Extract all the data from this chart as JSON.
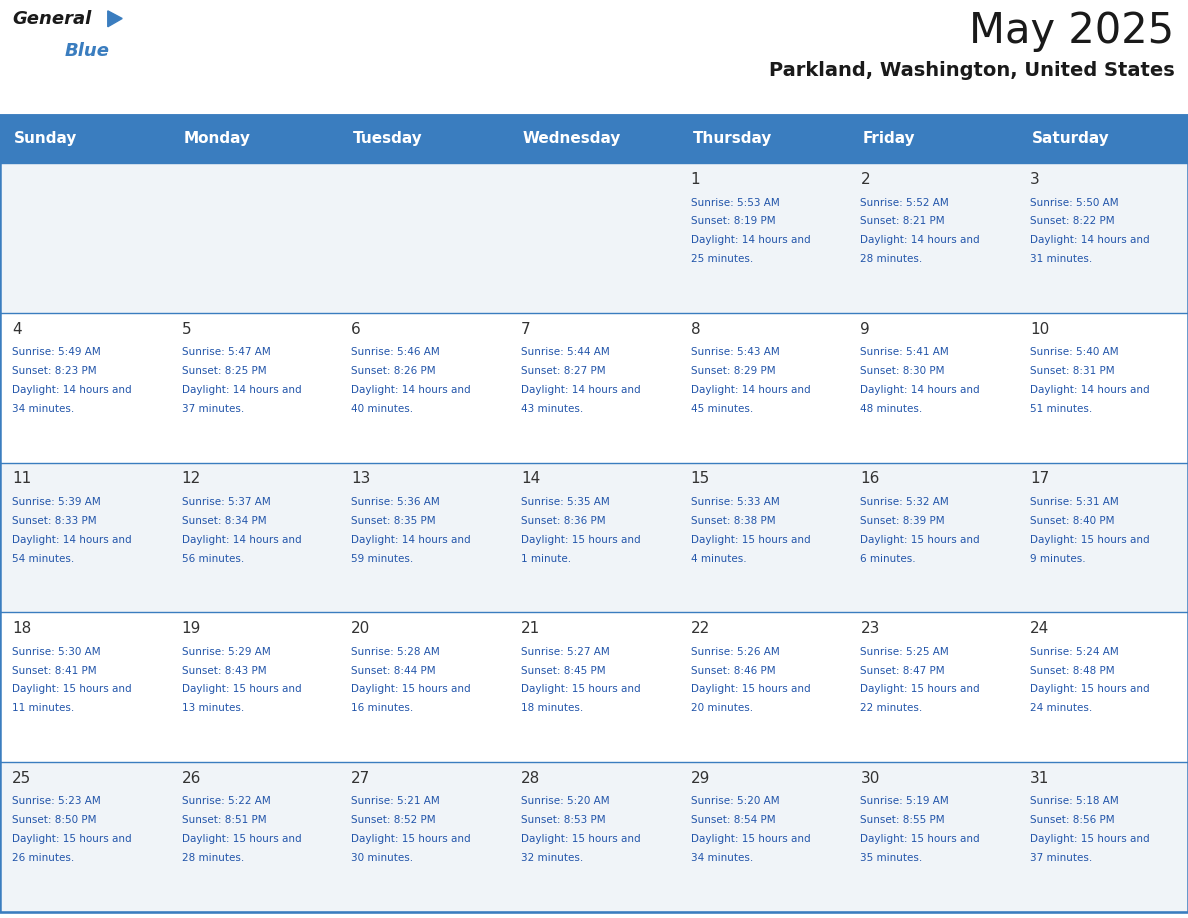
{
  "title": "May 2025",
  "subtitle": "Parkland, Washington, United States",
  "header_color": "#3a7dbf",
  "header_text_color": "#ffffff",
  "day_names": [
    "Sunday",
    "Monday",
    "Tuesday",
    "Wednesday",
    "Thursday",
    "Friday",
    "Saturday"
  ],
  "alt_row_color": "#f0f4f8",
  "white_color": "#ffffff",
  "border_color": "#3a7dbf",
  "day_number_color": "#333333",
  "cell_text_color": "#2255aa",
  "num_rows": 5,
  "days": [
    {
      "day": 1,
      "col": 4,
      "row": 0,
      "sunrise": "5:53 AM",
      "sunset": "8:19 PM",
      "daylight": "14 hours and 25 minutes"
    },
    {
      "day": 2,
      "col": 5,
      "row": 0,
      "sunrise": "5:52 AM",
      "sunset": "8:21 PM",
      "daylight": "14 hours and 28 minutes"
    },
    {
      "day": 3,
      "col": 6,
      "row": 0,
      "sunrise": "5:50 AM",
      "sunset": "8:22 PM",
      "daylight": "14 hours and 31 minutes"
    },
    {
      "day": 4,
      "col": 0,
      "row": 1,
      "sunrise": "5:49 AM",
      "sunset": "8:23 PM",
      "daylight": "14 hours and 34 minutes"
    },
    {
      "day": 5,
      "col": 1,
      "row": 1,
      "sunrise": "5:47 AM",
      "sunset": "8:25 PM",
      "daylight": "14 hours and 37 minutes"
    },
    {
      "day": 6,
      "col": 2,
      "row": 1,
      "sunrise": "5:46 AM",
      "sunset": "8:26 PM",
      "daylight": "14 hours and 40 minutes"
    },
    {
      "day": 7,
      "col": 3,
      "row": 1,
      "sunrise": "5:44 AM",
      "sunset": "8:27 PM",
      "daylight": "14 hours and 43 minutes"
    },
    {
      "day": 8,
      "col": 4,
      "row": 1,
      "sunrise": "5:43 AM",
      "sunset": "8:29 PM",
      "daylight": "14 hours and 45 minutes"
    },
    {
      "day": 9,
      "col": 5,
      "row": 1,
      "sunrise": "5:41 AM",
      "sunset": "8:30 PM",
      "daylight": "14 hours and 48 minutes"
    },
    {
      "day": 10,
      "col": 6,
      "row": 1,
      "sunrise": "5:40 AM",
      "sunset": "8:31 PM",
      "daylight": "14 hours and 51 minutes"
    },
    {
      "day": 11,
      "col": 0,
      "row": 2,
      "sunrise": "5:39 AM",
      "sunset": "8:33 PM",
      "daylight": "14 hours and 54 minutes"
    },
    {
      "day": 12,
      "col": 1,
      "row": 2,
      "sunrise": "5:37 AM",
      "sunset": "8:34 PM",
      "daylight": "14 hours and 56 minutes"
    },
    {
      "day": 13,
      "col": 2,
      "row": 2,
      "sunrise": "5:36 AM",
      "sunset": "8:35 PM",
      "daylight": "14 hours and 59 minutes"
    },
    {
      "day": 14,
      "col": 3,
      "row": 2,
      "sunrise": "5:35 AM",
      "sunset": "8:36 PM",
      "daylight": "15 hours and 1 minute"
    },
    {
      "day": 15,
      "col": 4,
      "row": 2,
      "sunrise": "5:33 AM",
      "sunset": "8:38 PM",
      "daylight": "15 hours and 4 minutes"
    },
    {
      "day": 16,
      "col": 5,
      "row": 2,
      "sunrise": "5:32 AM",
      "sunset": "8:39 PM",
      "daylight": "15 hours and 6 minutes"
    },
    {
      "day": 17,
      "col": 6,
      "row": 2,
      "sunrise": "5:31 AM",
      "sunset": "8:40 PM",
      "daylight": "15 hours and 9 minutes"
    },
    {
      "day": 18,
      "col": 0,
      "row": 3,
      "sunrise": "5:30 AM",
      "sunset": "8:41 PM",
      "daylight": "15 hours and 11 minutes"
    },
    {
      "day": 19,
      "col": 1,
      "row": 3,
      "sunrise": "5:29 AM",
      "sunset": "8:43 PM",
      "daylight": "15 hours and 13 minutes"
    },
    {
      "day": 20,
      "col": 2,
      "row": 3,
      "sunrise": "5:28 AM",
      "sunset": "8:44 PM",
      "daylight": "15 hours and 16 minutes"
    },
    {
      "day": 21,
      "col": 3,
      "row": 3,
      "sunrise": "5:27 AM",
      "sunset": "8:45 PM",
      "daylight": "15 hours and 18 minutes"
    },
    {
      "day": 22,
      "col": 4,
      "row": 3,
      "sunrise": "5:26 AM",
      "sunset": "8:46 PM",
      "daylight": "15 hours and 20 minutes"
    },
    {
      "day": 23,
      "col": 5,
      "row": 3,
      "sunrise": "5:25 AM",
      "sunset": "8:47 PM",
      "daylight": "15 hours and 22 minutes"
    },
    {
      "day": 24,
      "col": 6,
      "row": 3,
      "sunrise": "5:24 AM",
      "sunset": "8:48 PM",
      "daylight": "15 hours and 24 minutes"
    },
    {
      "day": 25,
      "col": 0,
      "row": 4,
      "sunrise": "5:23 AM",
      "sunset": "8:50 PM",
      "daylight": "15 hours and 26 minutes"
    },
    {
      "day": 26,
      "col": 1,
      "row": 4,
      "sunrise": "5:22 AM",
      "sunset": "8:51 PM",
      "daylight": "15 hours and 28 minutes"
    },
    {
      "day": 27,
      "col": 2,
      "row": 4,
      "sunrise": "5:21 AM",
      "sunset": "8:52 PM",
      "daylight": "15 hours and 30 minutes"
    },
    {
      "day": 28,
      "col": 3,
      "row": 4,
      "sunrise": "5:20 AM",
      "sunset": "8:53 PM",
      "daylight": "15 hours and 32 minutes"
    },
    {
      "day": 29,
      "col": 4,
      "row": 4,
      "sunrise": "5:20 AM",
      "sunset": "8:54 PM",
      "daylight": "15 hours and 34 minutes"
    },
    {
      "day": 30,
      "col": 5,
      "row": 4,
      "sunrise": "5:19 AM",
      "sunset": "8:55 PM",
      "daylight": "15 hours and 35 minutes"
    },
    {
      "day": 31,
      "col": 6,
      "row": 4,
      "sunrise": "5:18 AM",
      "sunset": "8:56 PM",
      "daylight": "15 hours and 37 minutes"
    }
  ]
}
